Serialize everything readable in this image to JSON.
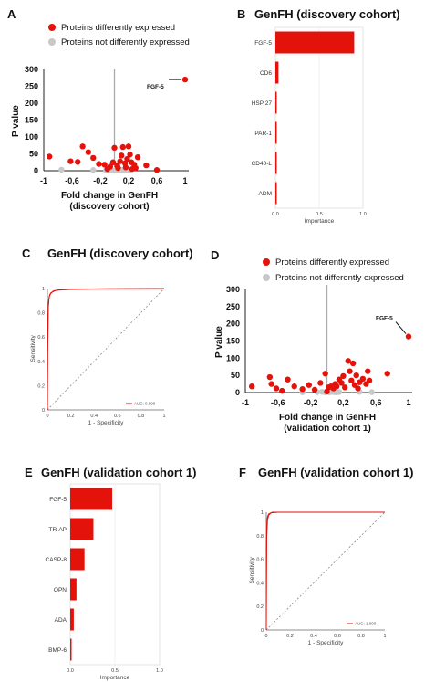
{
  "panel_labels": [
    "A",
    "B",
    "C",
    "D",
    "E",
    "F"
  ],
  "colors": {
    "diff": "#e3120b",
    "nondiff": "#c8c8c8",
    "bar": "#e3120b",
    "roc": "#e3120b",
    "diag": "#888888"
  },
  "chart_data": [
    {
      "type": "scatter",
      "panel": "A",
      "title": "",
      "legend": {
        "placement": "top-left",
        "entries": [
          "Proteins differently expressed",
          "Proteins not differently expressed"
        ]
      },
      "xlabel": "Fold change in GenFH",
      "xlabel2": "(discovery cohort)",
      "ylabel": "P value",
      "xlim": [
        -1,
        1
      ],
      "ylim": [
        0,
        300
      ],
      "xticks": [
        "-1",
        "-0,6",
        "-0,2",
        "0,2",
        "0,6",
        "1"
      ],
      "yticks": [
        "0",
        "50",
        "100",
        "150",
        "200",
        "250",
        "300"
      ],
      "annotation": {
        "label": "FGF-5",
        "x": 1,
        "y": 270
      },
      "series": [
        {
          "name": "Proteins differently expressed",
          "points": [
            [
              1,
              270
            ],
            [
              -0.92,
              42
            ],
            [
              -0.62,
              28
            ],
            [
              -0.52,
              26
            ],
            [
              -0.45,
              72
            ],
            [
              -0.37,
              55
            ],
            [
              -0.3,
              38
            ],
            [
              -0.22,
              20
            ],
            [
              -0.14,
              18
            ],
            [
              -0.06,
              12
            ],
            [
              0.0,
              68
            ],
            [
              0.04,
              15
            ],
            [
              0.08,
              28
            ],
            [
              0.1,
              45
            ],
            [
              0.12,
              70
            ],
            [
              0.15,
              22
            ],
            [
              0.18,
              35
            ],
            [
              0.2,
              72
            ],
            [
              0.22,
              48
            ],
            [
              0.24,
              25
            ],
            [
              0.25,
              5
            ],
            [
              0.28,
              18
            ],
            [
              0.33,
              40
            ],
            [
              0.45,
              16
            ],
            [
              0.6,
              2
            ],
            [
              -0.1,
              5
            ],
            [
              0.05,
              8
            ],
            [
              0.16,
              10
            ],
            [
              0.3,
              8
            ],
            [
              -0.02,
              25
            ]
          ]
        },
        {
          "name": "Proteins not differently expressed",
          "points": [
            [
              -0.75,
              3
            ],
            [
              -0.3,
              2
            ],
            [
              -0.12,
              1
            ],
            [
              -0.05,
              2
            ],
            [
              0.0,
              0.5
            ],
            [
              0.03,
              1
            ],
            [
              0.06,
              2
            ],
            [
              0.09,
              0.8
            ],
            [
              0.12,
              1.5
            ],
            [
              0.15,
              0.5
            ],
            [
              0.18,
              1
            ],
            [
              0.02,
              3
            ],
            [
              -0.08,
              0.5
            ],
            [
              0.1,
              2.5
            ],
            [
              0.21,
              1
            ]
          ]
        }
      ]
    },
    {
      "type": "bar",
      "panel": "B",
      "title": "GenFH (discovery cohort)",
      "orientation": "horizontal",
      "categories": [
        "FGF-5",
        "CD6",
        "HSP 27",
        "PAR-1",
        "CD40-L",
        "ADM"
      ],
      "values": [
        0.9,
        0.035,
        0.015,
        0.005,
        0.003,
        0.002
      ],
      "xlabel": "Importance",
      "xlim": [
        0,
        1
      ],
      "xticks": [
        "0.0",
        "0.5",
        "1.0"
      ]
    },
    {
      "type": "line",
      "panel": "C",
      "title": "GenFH (discovery cohort)",
      "xlabel": "1 - Specificity",
      "ylabel": "Sensitivity",
      "xlim": [
        0,
        1
      ],
      "ylim": [
        0,
        1
      ],
      "xticks": [
        "0",
        "0.2",
        "0.4",
        "0.6",
        "0.8",
        "1"
      ],
      "yticks": [
        "0",
        "0.2",
        "0.4",
        "0.6",
        "0.8",
        "1"
      ],
      "legend": {
        "placement": "bottom-right",
        "entries": [
          "AUC: 0.999"
        ]
      },
      "series": [
        {
          "points": [
            [
              0,
              0
            ],
            [
              0,
              0.6
            ],
            [
              0.005,
              0.8
            ],
            [
              0.01,
              0.9
            ],
            [
              0.02,
              0.95
            ],
            [
              0.05,
              0.98
            ],
            [
              0.1,
              0.99
            ],
            [
              0.3,
              0.995
            ],
            [
              1,
              1
            ]
          ]
        },
        {
          "points": [
            [
              0,
              0
            ],
            [
              0.003,
              0.5
            ],
            [
              0.008,
              0.85
            ],
            [
              0.015,
              0.93
            ],
            [
              0.03,
              0.965
            ],
            [
              0.07,
              0.985
            ],
            [
              0.2,
              0.993
            ],
            [
              0.5,
              0.998
            ],
            [
              1,
              1
            ]
          ]
        }
      ]
    },
    {
      "type": "scatter",
      "panel": "D",
      "title": "",
      "legend": {
        "placement": "top-left",
        "entries": [
          "Proteins differently expressed",
          "Proteins not differently expressed"
        ]
      },
      "xlabel": "Fold change in GenFH",
      "xlabel2": "(validation cohort 1)",
      "ylabel": "P value",
      "xlim": [
        -1,
        1
      ],
      "ylim": [
        0,
        300
      ],
      "xticks": [
        "-1",
        "-0,6",
        "-0,2",
        "0,2",
        "0,6",
        "1"
      ],
      "yticks": [
        "0",
        "50",
        "100",
        "150",
        "200",
        "250",
        "300"
      ],
      "annotation": {
        "label": "FGF-5",
        "x": 1,
        "y": 163
      },
      "series": [
        {
          "name": "Proteins differently expressed",
          "points": [
            [
              1,
              163
            ],
            [
              -0.92,
              18
            ],
            [
              -0.7,
              45
            ],
            [
              -0.68,
              25
            ],
            [
              -0.62,
              12
            ],
            [
              -0.48,
              38
            ],
            [
              -0.4,
              18
            ],
            [
              -0.3,
              10
            ],
            [
              -0.22,
              22
            ],
            [
              -0.15,
              8
            ],
            [
              -0.08,
              28
            ],
            [
              -0.02,
              55
            ],
            [
              0.02,
              15
            ],
            [
              0.05,
              18
            ],
            [
              0.08,
              12
            ],
            [
              0.1,
              25
            ],
            [
              0.12,
              18
            ],
            [
              0.15,
              38
            ],
            [
              0.18,
              28
            ],
            [
              0.2,
              48
            ],
            [
              0.22,
              15
            ],
            [
              0.26,
              92
            ],
            [
              0.28,
              62
            ],
            [
              0.3,
              35
            ],
            [
              0.32,
              85
            ],
            [
              0.34,
              22
            ],
            [
              0.36,
              50
            ],
            [
              0.4,
              30
            ],
            [
              0.44,
              40
            ],
            [
              0.48,
              25
            ],
            [
              0.5,
              62
            ],
            [
              0.52,
              35
            ],
            [
              0.74,
              55
            ],
            [
              -0.55,
              5
            ],
            [
              0.0,
              3
            ],
            [
              0.38,
              12
            ]
          ]
        },
        {
          "name": "Proteins not differently expressed",
          "points": [
            [
              -0.12,
              1
            ],
            [
              -0.06,
              2
            ],
            [
              -0.02,
              0.5
            ],
            [
              0.0,
              1.5
            ],
            [
              0.03,
              0.5
            ],
            [
              0.06,
              2
            ],
            [
              0.09,
              1
            ],
            [
              0.12,
              0.5
            ],
            [
              0.4,
              2
            ],
            [
              0.55,
              1
            ],
            [
              -0.3,
              0.8
            ],
            [
              0.15,
              1.5
            ]
          ]
        }
      ]
    },
    {
      "type": "bar",
      "panel": "E",
      "title": "GenFH (validation cohort 1)",
      "orientation": "horizontal",
      "categories": [
        "FGF-5",
        "TR-AP",
        "CASP-8",
        "OPN",
        "ADA",
        "BMP-6"
      ],
      "values": [
        0.47,
        0.26,
        0.16,
        0.07,
        0.04,
        0.005
      ],
      "xlabel": "Importance",
      "xlim": [
        0,
        1
      ],
      "xticks": [
        "0.0",
        "0.5",
        "1.0"
      ]
    },
    {
      "type": "line",
      "panel": "F",
      "title": "GenFH (validation cohort 1)",
      "xlabel": "1 - Specificity",
      "ylabel": "Sensitivity",
      "xlim": [
        0,
        1
      ],
      "ylim": [
        0,
        1
      ],
      "xticks": [
        "0",
        "0.2",
        "0.4",
        "0.6",
        "0.8",
        "1"
      ],
      "yticks": [
        "0",
        "0.2",
        "0.4",
        "0.6",
        "0.8",
        "1"
      ],
      "legend": {
        "placement": "bottom-right",
        "entries": [
          "AUC: 1.000"
        ]
      },
      "series": [
        {
          "points": [
            [
              0,
              0
            ],
            [
              0,
              0.7
            ],
            [
              0.005,
              0.9
            ],
            [
              0.01,
              0.96
            ],
            [
              0.02,
              0.985
            ],
            [
              0.05,
              1
            ],
            [
              1,
              1
            ]
          ]
        },
        {
          "points": [
            [
              0,
              0
            ],
            [
              0.004,
              0.8
            ],
            [
              0.01,
              0.93
            ],
            [
              0.02,
              0.975
            ],
            [
              0.04,
              0.995
            ],
            [
              0.1,
              1
            ],
            [
              1,
              1
            ]
          ]
        }
      ]
    }
  ]
}
